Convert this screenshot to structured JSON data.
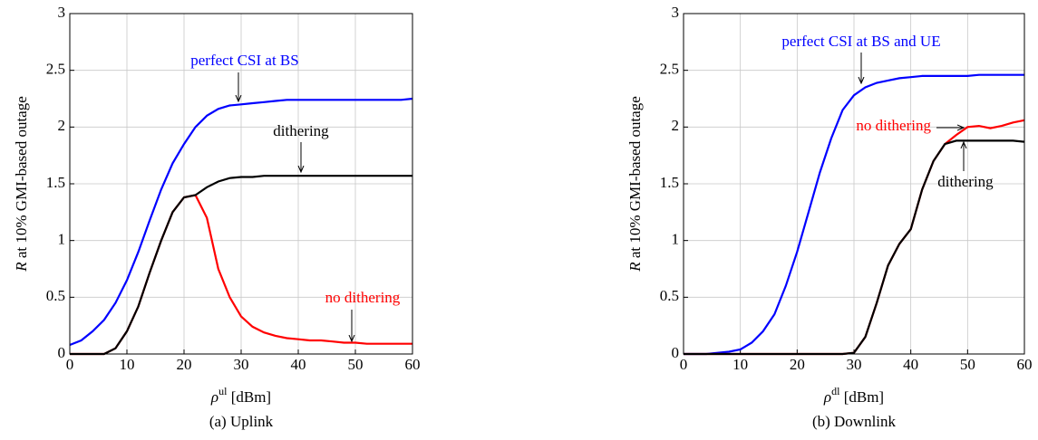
{
  "chart_data": [
    {
      "type": "line",
      "caption": "(a) Uplink",
      "xlabel": {
        "symbol": "ρ",
        "sup": "ul",
        "unit": " [dBm]"
      },
      "ylabel": {
        "symbol": "R",
        "text": " at 10% GMI-based outage"
      },
      "xlim": [
        0,
        60
      ],
      "xticks": [
        0,
        10,
        20,
        30,
        40,
        50,
        60
      ],
      "ylim": [
        0,
        3
      ],
      "yticks": [
        0,
        0.5,
        1,
        1.5,
        2,
        2.5,
        3
      ],
      "grid": true,
      "x": [
        0,
        2,
        4,
        6,
        8,
        10,
        12,
        14,
        16,
        18,
        20,
        22,
        24,
        26,
        28,
        30,
        32,
        34,
        36,
        38,
        40,
        42,
        44,
        46,
        48,
        50,
        52,
        54,
        56,
        58,
        60
      ],
      "series": [
        {
          "name": "perfect CSI at BS",
          "color": "#0000ff",
          "values": [
            0.08,
            0.12,
            0.2,
            0.3,
            0.45,
            0.65,
            0.9,
            1.18,
            1.45,
            1.68,
            1.85,
            2.0,
            2.1,
            2.16,
            2.19,
            2.2,
            2.21,
            2.22,
            2.23,
            2.24,
            2.24,
            2.24,
            2.24,
            2.24,
            2.24,
            2.24,
            2.24,
            2.24,
            2.24,
            2.24,
            2.25
          ]
        },
        {
          "name": "no dithering",
          "color": "#ff0000",
          "values": [
            0,
            0,
            0,
            0,
            0.05,
            0.2,
            0.42,
            0.72,
            1.0,
            1.25,
            1.38,
            1.4,
            1.2,
            0.75,
            0.5,
            0.33,
            0.24,
            0.19,
            0.16,
            0.14,
            0.13,
            0.12,
            0.12,
            0.11,
            0.1,
            0.1,
            0.09,
            0.09,
            0.09,
            0.09,
            0.09
          ]
        },
        {
          "name": "dithering",
          "color": "#000000",
          "values": [
            0,
            0,
            0,
            0,
            0.05,
            0.2,
            0.42,
            0.72,
            1.0,
            1.25,
            1.38,
            1.4,
            1.47,
            1.52,
            1.55,
            1.56,
            1.56,
            1.57,
            1.57,
            1.57,
            1.57,
            1.57,
            1.57,
            1.57,
            1.57,
            1.57,
            1.57,
            1.57,
            1.57,
            1.57,
            1.57
          ]
        }
      ]
    },
    {
      "type": "line",
      "caption": "(b) Downlink",
      "xlabel": {
        "symbol": "ρ",
        "sup": "dl",
        "unit": " [dBm]"
      },
      "ylabel": {
        "symbol": "R",
        "text": " at 10% GMI-based outage"
      },
      "xlim": [
        0,
        60
      ],
      "xticks": [
        0,
        10,
        20,
        30,
        40,
        50,
        60
      ],
      "ylim": [
        0,
        3
      ],
      "yticks": [
        0,
        0.5,
        1,
        1.5,
        2,
        2.5,
        3
      ],
      "grid": true,
      "x": [
        0,
        2,
        4,
        6,
        8,
        10,
        12,
        14,
        16,
        18,
        20,
        22,
        24,
        26,
        28,
        30,
        32,
        34,
        36,
        38,
        40,
        42,
        44,
        46,
        48,
        50,
        52,
        54,
        56,
        58,
        60
      ],
      "series": [
        {
          "name": "perfect CSI at BS and UE",
          "color": "#0000ff",
          "values": [
            0,
            0,
            0,
            0.01,
            0.02,
            0.04,
            0.1,
            0.2,
            0.35,
            0.6,
            0.9,
            1.25,
            1.6,
            1.9,
            2.15,
            2.28,
            2.35,
            2.39,
            2.41,
            2.43,
            2.44,
            2.45,
            2.45,
            2.45,
            2.45,
            2.45,
            2.46,
            2.46,
            2.46,
            2.46,
            2.46
          ]
        },
        {
          "name": "no dithering",
          "color": "#ff0000",
          "values": [
            0,
            0,
            0,
            0,
            0,
            0,
            0,
            0,
            0,
            0,
            0,
            0,
            0,
            0,
            0,
            0.01,
            0.15,
            0.45,
            0.78,
            0.97,
            1.1,
            1.45,
            1.7,
            1.85,
            1.93,
            2.0,
            2.01,
            1.99,
            2.01,
            2.04,
            2.06
          ]
        },
        {
          "name": "dithering",
          "color": "#000000",
          "values": [
            0,
            0,
            0,
            0,
            0,
            0,
            0,
            0,
            0,
            0,
            0,
            0,
            0,
            0,
            0,
            0.01,
            0.15,
            0.45,
            0.78,
            0.97,
            1.1,
            1.45,
            1.7,
            1.85,
            1.88,
            1.88,
            1.88,
            1.88,
            1.88,
            1.88,
            1.87
          ]
        }
      ]
    }
  ]
}
